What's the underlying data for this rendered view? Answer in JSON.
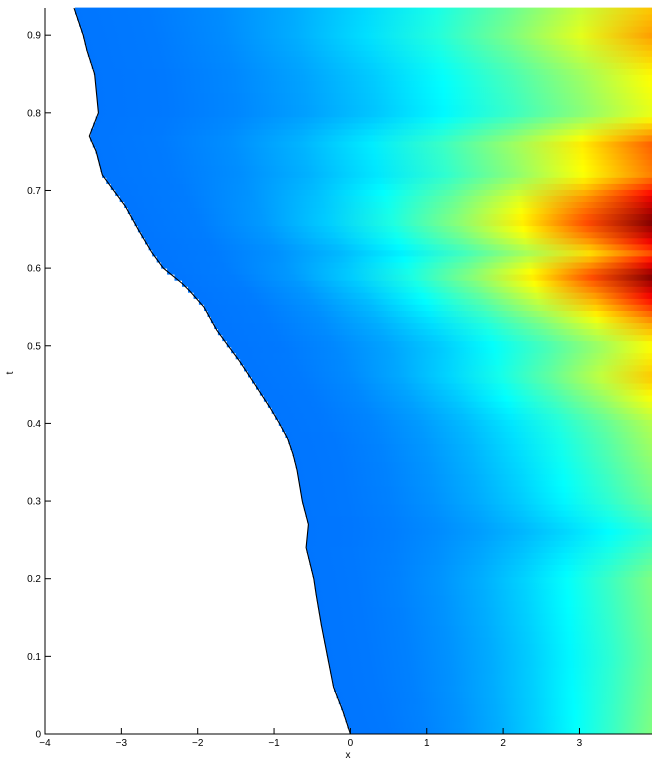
{
  "chart_data": {
    "type": "heatmap",
    "title": "",
    "xlabel": "x",
    "ylabel": "t",
    "xlim": [
      -4,
      3.95
    ],
    "ylim": [
      0,
      0.935
    ],
    "x_ticks": [
      -4,
      -3,
      -2,
      -1,
      0,
      1,
      2,
      3
    ],
    "x_tick_labels": [
      "−4",
      "−3",
      "−2",
      "−1",
      "0",
      "1",
      "2",
      "3"
    ],
    "y_ticks": [
      0,
      0.1,
      0.2,
      0.3,
      0.4,
      0.5,
      0.6,
      0.7,
      0.8,
      0.9
    ],
    "y_tick_labels": [
      "0",
      "0.1",
      "0.2",
      "0.3",
      "0.4",
      "0.5",
      "0.6",
      "0.7",
      "0.8",
      "0.9"
    ],
    "grid": false,
    "colormap": "jet",
    "boundary_curve": {
      "t": [
        0,
        0.03,
        0.06,
        0.1,
        0.14,
        0.18,
        0.2,
        0.24,
        0.27,
        0.3,
        0.34,
        0.36,
        0.38,
        0.4,
        0.42,
        0.45,
        0.48,
        0.5,
        0.52,
        0.55,
        0.57,
        0.58,
        0.6,
        0.62,
        0.65,
        0.68,
        0.7,
        0.72,
        0.75,
        0.77,
        0.8,
        0.82,
        0.85,
        0.88,
        0.9,
        0.935
      ],
      "x": [
        0.0,
        -0.1,
        -0.22,
        -0.3,
        -0.38,
        -0.45,
        -0.48,
        -0.58,
        -0.55,
        -0.63,
        -0.7,
        -0.75,
        -0.82,
        -0.93,
        -1.05,
        -1.25,
        -1.45,
        -1.6,
        -1.75,
        -1.92,
        -2.1,
        -2.2,
        -2.45,
        -2.6,
        -2.78,
        -2.95,
        -3.1,
        -3.25,
        -3.33,
        -3.42,
        -3.3,
        -3.32,
        -3.35,
        -3.45,
        -3.5,
        -3.62
      ]
    },
    "intensity_bands": [
      {
        "t": 0.0,
        "x_max_value": 0.5
      },
      {
        "t": 0.1,
        "x_max_value": 0.48
      },
      {
        "t": 0.2,
        "x_max_value": 0.5
      },
      {
        "t": 0.26,
        "x_max_value": 0.42
      },
      {
        "t": 0.3,
        "x_max_value": 0.48
      },
      {
        "t": 0.4,
        "x_max_value": 0.55
      },
      {
        "t": 0.46,
        "x_max_value": 0.68
      },
      {
        "t": 0.5,
        "x_max_value": 0.62
      },
      {
        "t": 0.53,
        "x_max_value": 0.72
      },
      {
        "t": 0.55,
        "x_max_value": 0.82
      },
      {
        "t": 0.59,
        "x_max_value": 1.0
      },
      {
        "t": 0.62,
        "x_max_value": 0.8
      },
      {
        "t": 0.64,
        "x_max_value": 0.92
      },
      {
        "t": 0.66,
        "x_max_value": 1.0
      },
      {
        "t": 0.69,
        "x_max_value": 0.9
      },
      {
        "t": 0.72,
        "x_max_value": 0.75
      },
      {
        "t": 0.76,
        "x_max_value": 0.78
      },
      {
        "t": 0.8,
        "x_max_value": 0.6
      },
      {
        "t": 0.85,
        "x_max_value": 0.63
      },
      {
        "t": 0.9,
        "x_max_value": 0.72
      },
      {
        "t": 0.935,
        "x_max_value": 0.68
      }
    ]
  }
}
